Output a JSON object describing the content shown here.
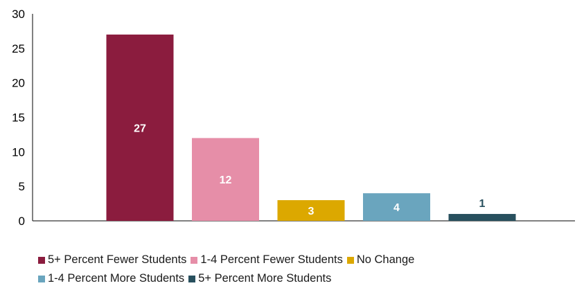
{
  "chart_data": {
    "type": "bar",
    "title": "",
    "xlabel": "",
    "ylabel": "",
    "ylim": [
      0,
      30
    ],
    "yticks": [
      "0",
      "5",
      "10",
      "15",
      "20",
      "25",
      "30"
    ],
    "grid": false,
    "legend_position": "bottom",
    "categories": [
      "5+ Percent Fewer Students",
      "1-4 Percent Fewer Students",
      "No Change",
      "1-4 Percent More Students",
      "5+ Percent More Students"
    ],
    "values": [
      27,
      12,
      3,
      4,
      1
    ],
    "data_labels": [
      "27",
      "12",
      "3",
      "4",
      "1"
    ],
    "colors": [
      "#8b1c3e",
      "#e68ea8",
      "#dca800",
      "#6aa5be",
      "#28505e"
    ],
    "label_colors": [
      "#ffffff",
      "#ffffff",
      "#ffffff",
      "#ffffff",
      "#28505e"
    ]
  },
  "legend": {
    "row1": [
      "5+ Percent Fewer Students",
      "1-4 Percent Fewer Students",
      "No Change"
    ],
    "row2": [
      "1-4 Percent More Students",
      "5+ Percent More Students"
    ]
  }
}
